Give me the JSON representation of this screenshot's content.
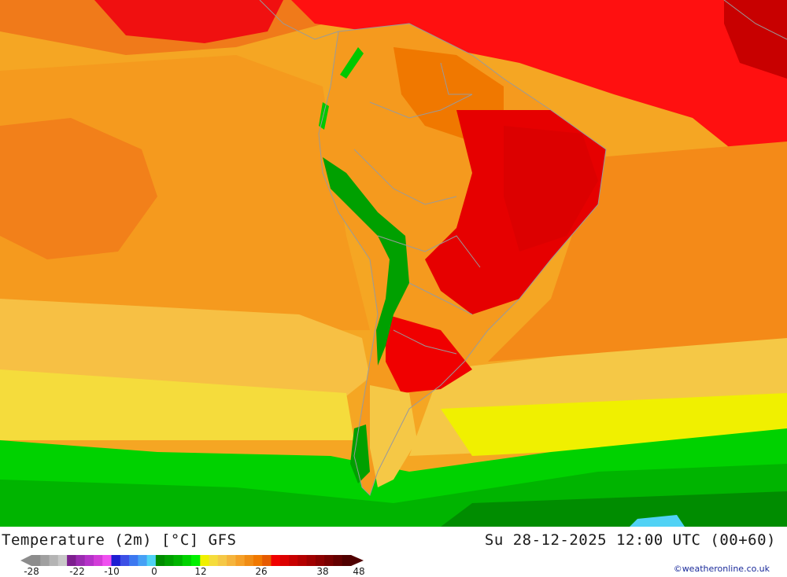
{
  "header": {
    "left_title": "Temperature (2m) [°C] GFS",
    "right_title": "Su 28-12-2025 12:00 UTC (00+60)"
  },
  "legend": {
    "ticks": [
      "-28",
      "-22",
      "-10",
      "0",
      "12",
      "26",
      "38",
      "48"
    ],
    "colors": [
      "#8c8c8c",
      "#a0a0a0",
      "#b4b4b4",
      "#c8c8c8",
      "#7d1f8f",
      "#9a2bb0",
      "#b532c8",
      "#d23cd8",
      "#f050f0",
      "#1e1ed2",
      "#3c50e6",
      "#3c78f0",
      "#46a0f5",
      "#50d2f5",
      "#008c00",
      "#00a000",
      "#00b400",
      "#00d200",
      "#00f000",
      "#f0f000",
      "#f5dc3c",
      "#f5c846",
      "#f5b43c",
      "#f5a028",
      "#f08c14",
      "#f07800",
      "#e65a00",
      "#f00000",
      "#dc0000",
      "#c80000",
      "#b40000",
      "#a00000",
      "#8c0000",
      "#780000",
      "#640000",
      "#500000"
    ]
  },
  "credit": "©weatheronline.co.uk"
}
